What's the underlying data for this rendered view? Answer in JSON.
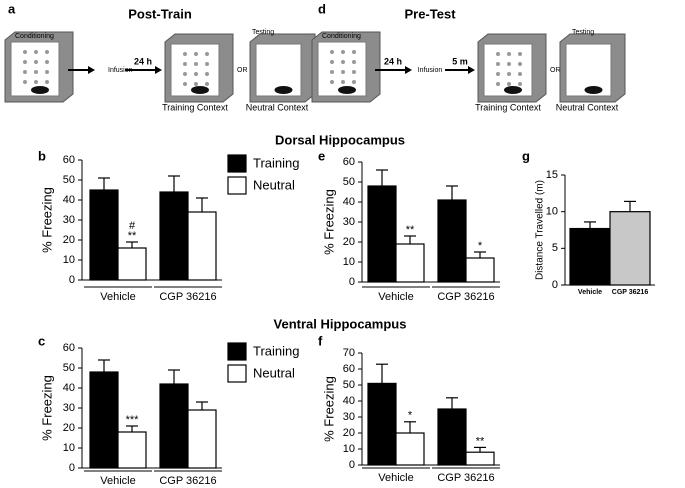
{
  "diagrams": [
    {
      "label": "a",
      "title": "Post-Train",
      "conditioning": "Conditioning",
      "testing": "Testing",
      "steps": [
        "Infusion",
        "24 h"
      ],
      "or": "OR",
      "contexts": [
        "Training Context",
        "Neutral Context"
      ]
    },
    {
      "label": "d",
      "title": "Pre-Test",
      "conditioning": "Conditioning",
      "testing": "Testing",
      "steps": [
        "24 h",
        "Infusion",
        "5 m"
      ],
      "or": "OR",
      "contexts": [
        "Training Context",
        "Neutral Context"
      ]
    }
  ],
  "section_titles": [
    "Dorsal  Hippocampus",
    "Ventral Hippocampus"
  ],
  "chart_data": [
    {
      "type": "bar",
      "label": "b",
      "y_label": "% Freezing",
      "categories": [
        "Vehicle",
        "CGP 36216"
      ],
      "series": [
        {
          "name": "Training",
          "color": "#000000",
          "values": [
            45,
            44
          ],
          "errors": [
            6,
            8
          ],
          "significance": [
            null,
            null
          ]
        },
        {
          "name": "Neutral",
          "color": "#ffffff",
          "values": [
            16,
            34
          ],
          "errors": [
            3,
            7
          ],
          "significance": [
            [
              "#",
              "**"
            ],
            null
          ]
        }
      ],
      "ylim": [
        0,
        60
      ],
      "yticks": [
        0,
        10,
        20,
        30,
        40,
        50,
        60
      ],
      "legend": "right"
    },
    {
      "type": "bar",
      "label": "e",
      "y_label": "% Freezing",
      "categories": [
        "Vehicle",
        "CGP 36216"
      ],
      "series": [
        {
          "name": "Training",
          "color": "#000000",
          "values": [
            48,
            41
          ],
          "errors": [
            8,
            7
          ],
          "significance": [
            null,
            null
          ]
        },
        {
          "name": "Neutral",
          "color": "#ffffff",
          "values": [
            19,
            12
          ],
          "errors": [
            4,
            3
          ],
          "significance": [
            [
              "**"
            ],
            [
              "*"
            ]
          ]
        }
      ],
      "ylim": [
        0,
        60
      ],
      "yticks": [
        0,
        10,
        20,
        30,
        40,
        50,
        60
      ]
    },
    {
      "type": "bar",
      "label": "g",
      "y_label": "Distance  Travelled (m)",
      "categories": [
        "Vehicle",
        "CGP 36216"
      ],
      "values": [
        7.7,
        10
      ],
      "errors": [
        0.9,
        1.4
      ],
      "colors": [
        "#000000",
        "#c8c8c8"
      ],
      "ylim": [
        0,
        15
      ],
      "yticks": [
        0,
        5,
        10,
        15
      ]
    },
    {
      "type": "bar",
      "label": "c",
      "y_label": "% Freezing",
      "categories": [
        "Vehicle",
        "CGP 36216"
      ],
      "series": [
        {
          "name": "Training",
          "color": "#000000",
          "values": [
            48,
            42
          ],
          "errors": [
            6,
            7
          ],
          "significance": [
            null,
            null
          ]
        },
        {
          "name": "Neutral",
          "color": "#ffffff",
          "values": [
            18,
            29
          ],
          "errors": [
            3,
            4
          ],
          "significance": [
            [
              "***"
            ],
            null
          ]
        }
      ],
      "ylim": [
        0,
        60
      ],
      "yticks": [
        0,
        10,
        20,
        30,
        40,
        50,
        60
      ],
      "legend": "right"
    },
    {
      "type": "bar",
      "label": "f",
      "y_label": "% Freezing",
      "categories": [
        "Vehicle",
        "CGP 36216"
      ],
      "series": [
        {
          "name": "Training",
          "color": "#000000",
          "values": [
            51,
            35
          ],
          "errors": [
            12,
            7
          ],
          "significance": [
            null,
            null
          ]
        },
        {
          "name": "Neutral",
          "color": "#ffffff",
          "values": [
            20,
            8
          ],
          "errors": [
            7,
            3
          ],
          "significance": [
            [
              "*"
            ],
            [
              "**"
            ]
          ]
        }
      ],
      "ylim": [
        0,
        70
      ],
      "yticks": [
        0,
        10,
        20,
        30,
        40,
        50,
        60,
        70
      ]
    }
  ]
}
